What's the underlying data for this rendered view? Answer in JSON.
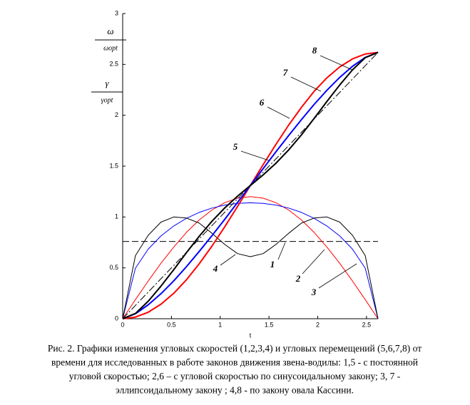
{
  "chart_data": {
    "type": "line",
    "x_label": "t",
    "y_labels": [
      {
        "num": "ω",
        "den": "ωopt"
      },
      {
        "num": "γ",
        "den": "γopt"
      }
    ],
    "x": [
      0,
      0.131,
      0.262,
      0.393,
      0.524,
      0.654,
      0.785,
      0.916,
      1.047,
      1.178,
      1.309,
      1.44,
      1.571,
      1.702,
      1.833,
      1.963,
      2.094,
      2.225,
      2.356,
      2.487,
      2.618
    ],
    "xlim": [
      0,
      2.618
    ],
    "xticks": [
      0,
      0.5,
      1,
      1.5,
      2,
      2.5
    ],
    "ylim": [
      0,
      3
    ],
    "yticks": [
      0,
      0.5,
      1,
      1.5,
      2,
      2.5,
      3
    ],
    "series": [
      {
        "name": "1",
        "color": "#000000",
        "width": 1,
        "dash": "dash",
        "values": [
          0.76,
          0.76,
          0.76,
          0.76,
          0.76,
          0.76,
          0.76,
          0.76,
          0.76,
          0.76,
          0.76,
          0.76,
          0.76,
          0.76,
          0.76,
          0.76,
          0.76,
          0.76,
          0.76,
          0.76,
          0.76
        ]
      },
      {
        "name": "2",
        "color": "#ff0000",
        "width": 1,
        "dash": "solid",
        "values": [
          0,
          0.188,
          0.371,
          0.545,
          0.705,
          0.849,
          0.971,
          1.069,
          1.141,
          1.185,
          1.2,
          1.185,
          1.141,
          1.069,
          0.971,
          0.849,
          0.705,
          0.545,
          0.371,
          0.188,
          0
        ]
      },
      {
        "name": "3",
        "color": "#0000ff",
        "width": 1,
        "dash": "solid",
        "values": [
          0,
          0.497,
          0.684,
          0.814,
          0.912,
          0.987,
          1.045,
          1.088,
          1.117,
          1.134,
          1.14,
          1.134,
          1.117,
          1.088,
          1.045,
          0.987,
          0.912,
          0.814,
          0.684,
          0.497,
          0
        ]
      },
      {
        "name": "4",
        "color": "#000000",
        "width": 1,
        "dash": "solid",
        "values": [
          0,
          0.62,
          0.82,
          0.95,
          1.0,
          0.99,
          0.94,
          0.84,
          0.73,
          0.64,
          0.61,
          0.64,
          0.73,
          0.84,
          0.94,
          0.99,
          1.0,
          0.95,
          0.82,
          0.62,
          0
        ]
      },
      {
        "name": "5",
        "color": "#000000",
        "width": 1,
        "dash": "dashdot",
        "values": [
          0,
          0.131,
          0.262,
          0.393,
          0.524,
          0.654,
          0.785,
          0.916,
          1.047,
          1.178,
          1.309,
          1.44,
          1.571,
          1.702,
          1.833,
          1.963,
          2.094,
          2.225,
          2.356,
          2.487,
          2.618
        ]
      },
      {
        "name": "6",
        "color": "#ff0000",
        "width": 2,
        "dash": "solid",
        "values": [
          0,
          0.016,
          0.064,
          0.143,
          0.25,
          0.383,
          0.54,
          0.715,
          0.905,
          1.104,
          1.309,
          1.514,
          1.713,
          1.903,
          2.078,
          2.235,
          2.368,
          2.475,
          2.554,
          2.602,
          2.618
        ]
      },
      {
        "name": "7",
        "color": "#0000ff",
        "width": 2,
        "dash": "solid",
        "values": [
          0,
          0.049,
          0.137,
          0.246,
          0.373,
          0.512,
          0.661,
          0.817,
          0.978,
          1.143,
          1.309,
          1.475,
          1.64,
          1.801,
          1.957,
          2.106,
          2.245,
          2.372,
          2.481,
          2.569,
          2.618
        ]
      },
      {
        "name": "8",
        "color": "#000000",
        "width": 2,
        "dash": "solid",
        "values": [
          0,
          0.052,
          0.172,
          0.32,
          0.483,
          0.649,
          0.81,
          0.959,
          1.09,
          1.205,
          1.309,
          1.413,
          1.528,
          1.659,
          1.808,
          1.969,
          2.135,
          2.298,
          2.446,
          2.566,
          2.618
        ]
      }
    ],
    "caption": [
      "Рис. 2. Графики изменения угловых скоростей (1,2,3,4) и угловых перемещений (5,6,7,8)  от",
      "времени для исследованных в работе законов движения звена-водилы: 1,5 - с постоянной",
      "угловой скоростью; 2,6 – с угловой скоростью  по синусоидальному закону; 3, 7 -",
      "эллипсоидальному закону ; 4,8 -  по закону овала Кассини."
    ]
  }
}
